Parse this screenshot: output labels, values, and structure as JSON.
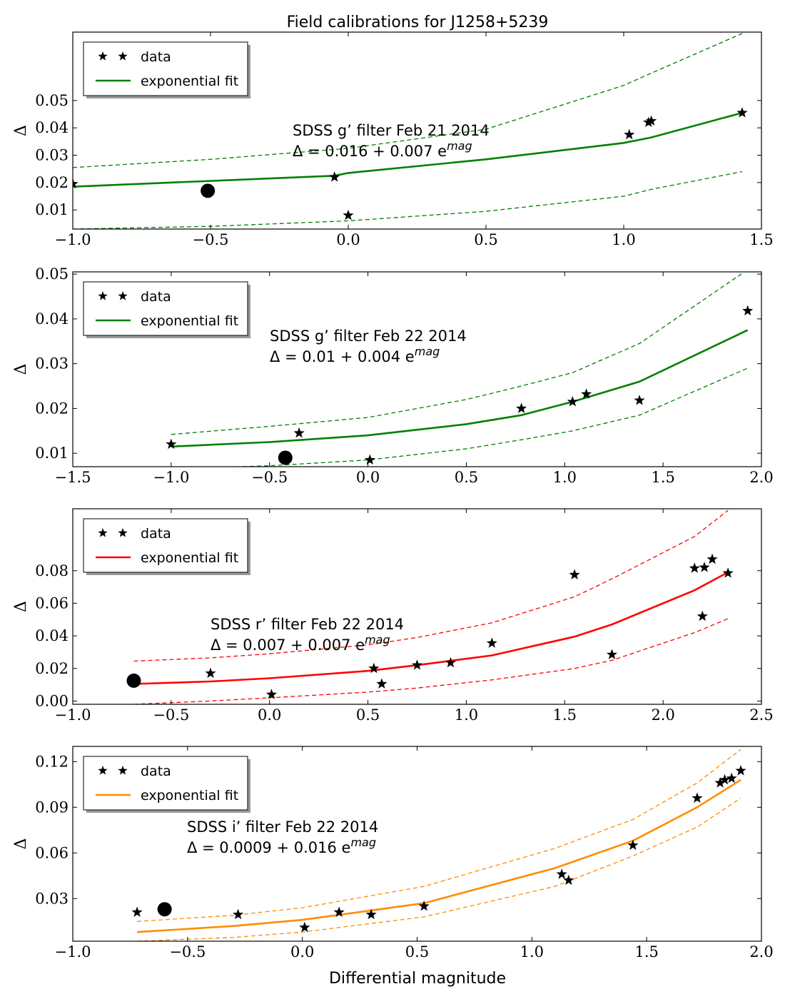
{
  "figure": {
    "title": "Field calibrations for J1258+5239",
    "xlabel": "Differential magnitude"
  },
  "chart_data": [
    {
      "type": "scatter",
      "xlim": [
        -1.0,
        1.5
      ],
      "ylim": [
        0.003,
        0.075
      ],
      "xticks": [
        -1.0,
        -0.5,
        0.0,
        0.5,
        1.0,
        1.5
      ],
      "xtick_labels": [
        "−1.0",
        "−0.5",
        "0.0",
        "0.5",
        "1.0",
        "1.5"
      ],
      "yticks": [
        0.01,
        0.02,
        0.03,
        0.04,
        0.05
      ],
      "ytick_labels": [
        "0.01",
        "0.02",
        "0.03",
        "0.04",
        "0.05"
      ],
      "ylabel": "Δ",
      "color": "#008000",
      "annotation": {
        "line1": "SDSS g’ filter Feb 21 2014",
        "line2_prefix": "Δ = 0.016 + 0.007 e",
        "line2_sup": "mag"
      },
      "legend": {
        "data_label": "data",
        "fit_label": "exponential fit",
        "position": "top-left"
      },
      "data": {
        "x": [
          -1.0,
          -0.05,
          0.0,
          1.02,
          1.09,
          1.1,
          1.43
        ],
        "y": [
          0.0195,
          0.022,
          0.008,
          0.0375,
          0.042,
          0.0425,
          0.0455
        ]
      },
      "target": {
        "x": -0.51,
        "y": 0.017
      },
      "fit": {
        "x": [
          -1.0,
          -0.05,
          0.0,
          0.5,
          1.0,
          1.1,
          1.43
        ],
        "y": [
          0.0185,
          0.0225,
          0.0235,
          0.0285,
          0.0345,
          0.0365,
          0.0455
        ]
      },
      "fit_upper": {
        "x": [
          -1.0,
          -0.5,
          0.0,
          0.5,
          1.0,
          1.1,
          1.43
        ],
        "y": [
          0.0255,
          0.0285,
          0.0325,
          0.0395,
          0.0555,
          0.06,
          0.0745
        ]
      },
      "fit_lower": {
        "x": [
          -1.0,
          -0.5,
          0.0,
          0.5,
          1.0,
          1.1,
          1.43
        ],
        "y": [
          0.003,
          0.004,
          0.006,
          0.0095,
          0.015,
          0.0175,
          0.024
        ]
      }
    },
    {
      "type": "scatter",
      "xlim": [
        -1.5,
        2.0
      ],
      "ylim": [
        0.007,
        0.0505
      ],
      "xticks": [
        -1.5,
        -1.0,
        -0.5,
        0.0,
        0.5,
        1.0,
        1.5,
        2.0
      ],
      "xtick_labels": [
        "−1.5",
        "−1.0",
        "−0.5",
        "0.0",
        "0.5",
        "1.0",
        "1.5",
        "2.0"
      ],
      "yticks": [
        0.01,
        0.02,
        0.03,
        0.04,
        0.05
      ],
      "ytick_labels": [
        "0.01",
        "0.02",
        "0.03",
        "0.04",
        "0.05"
      ],
      "ylabel": "Δ",
      "color": "#008000",
      "annotation": {
        "line1": "SDSS g’ filter Feb 22 2014",
        "line2_prefix": "Δ = 0.01 + 0.004 e",
        "line2_sup": "mag"
      },
      "legend": {
        "data_label": "data",
        "fit_label": "exponential fit",
        "position": "top-left"
      },
      "data": {
        "x": [
          -1.0,
          -0.35,
          0.01,
          0.78,
          1.04,
          1.11,
          1.38,
          1.93
        ],
        "y": [
          0.012,
          0.0145,
          0.0085,
          0.02,
          0.0215,
          0.0232,
          0.0218,
          0.0418
        ]
      },
      "target": {
        "x": -0.42,
        "y": 0.009
      },
      "fit": {
        "x": [
          -1.0,
          -0.5,
          0.0,
          0.5,
          0.78,
          1.04,
          1.38,
          1.93
        ],
        "y": [
          0.0115,
          0.0125,
          0.014,
          0.0165,
          0.0185,
          0.0215,
          0.026,
          0.0375
        ]
      },
      "fit_upper": {
        "x": [
          -1.0,
          -0.5,
          0.0,
          0.5,
          0.78,
          1.04,
          1.38,
          1.93
        ],
        "y": [
          0.0142,
          0.016,
          0.018,
          0.022,
          0.025,
          0.028,
          0.0345,
          0.051
        ]
      },
      "fit_lower": {
        "x": [
          -1.0,
          -0.5,
          0.0,
          0.5,
          0.78,
          1.04,
          1.38,
          1.93
        ],
        "y": [
          0.0065,
          0.0072,
          0.0085,
          0.011,
          0.013,
          0.015,
          0.0185,
          0.029
        ]
      }
    },
    {
      "type": "scatter",
      "xlim": [
        -1.0,
        2.5
      ],
      "ylim": [
        -0.002,
        0.118
      ],
      "xticks": [
        -1.0,
        -0.5,
        0.0,
        0.5,
        1.0,
        1.5,
        2.0,
        2.5
      ],
      "xtick_labels": [
        "−1.0",
        "−0.5",
        "0.0",
        "0.5",
        "1.0",
        "1.5",
        "2.0",
        "2.5"
      ],
      "yticks": [
        0.0,
        0.02,
        0.04,
        0.06,
        0.08
      ],
      "ytick_labels": [
        "0.00",
        "0.02",
        "0.04",
        "0.06",
        "0.08"
      ],
      "ylabel": "Δ",
      "color": "#ff0000",
      "annotation": {
        "line1": "SDSS r’ filter Feb 22 2014",
        "line2_prefix": "Δ = 0.007 + 0.007 e",
        "line2_sup": "mag"
      },
      "legend": {
        "data_label": "data",
        "fit_label": "exponential fit",
        "position": "top-left"
      },
      "data": {
        "x": [
          -0.3,
          0.01,
          0.53,
          0.57,
          0.75,
          0.92,
          1.13,
          1.55,
          1.74,
          2.16,
          2.2,
          2.21,
          2.25,
          2.33
        ],
        "y": [
          0.017,
          0.004,
          0.02,
          0.0105,
          0.022,
          0.0235,
          0.0355,
          0.0775,
          0.0285,
          0.0815,
          0.052,
          0.082,
          0.087,
          0.0785
        ]
      },
      "target": {
        "x": -0.69,
        "y": 0.0125
      },
      "fit": {
        "x": [
          -0.69,
          -0.3,
          0.0,
          0.5,
          0.75,
          1.13,
          1.55,
          1.74,
          2.16,
          2.33
        ],
        "y": [
          0.0105,
          0.012,
          0.014,
          0.0185,
          0.022,
          0.028,
          0.0395,
          0.047,
          0.068,
          0.079
        ]
      },
      "fit_upper": {
        "x": [
          -0.69,
          -0.3,
          0.0,
          0.5,
          0.75,
          1.13,
          1.55,
          1.74,
          2.16,
          2.33
        ],
        "y": [
          0.0245,
          0.0265,
          0.029,
          0.0345,
          0.039,
          0.048,
          0.064,
          0.075,
          0.101,
          0.117
        ]
      },
      "fit_lower": {
        "x": [
          -0.69,
          -0.3,
          0.0,
          0.5,
          0.75,
          1.13,
          1.55,
          1.74,
          2.16,
          2.33
        ],
        "y": [
          -0.002,
          0.0,
          0.002,
          0.0055,
          0.008,
          0.013,
          0.02,
          0.025,
          0.042,
          0.0505
        ]
      }
    },
    {
      "type": "scatter",
      "xlim": [
        -1.0,
        2.0
      ],
      "ylim": [
        0.002,
        0.13
      ],
      "xticks": [
        -1.0,
        -0.5,
        0.0,
        0.5,
        1.0,
        1.5,
        2.0
      ],
      "xtick_labels": [
        "−1.0",
        "−0.5",
        "0.0",
        "0.5",
        "1.0",
        "1.5",
        "2.0"
      ],
      "yticks": [
        0.03,
        0.06,
        0.09,
        0.12
      ],
      "ytick_labels": [
        "0.03",
        "0.06",
        "0.09",
        "0.12"
      ],
      "ylabel": "Δ",
      "color": "#ff8c00",
      "annotation": {
        "line1": "SDSS i’ filter Feb 22 2014",
        "line2_prefix": "Δ = 0.0009 + 0.016 e",
        "line2_sup": "mag"
      },
      "legend": {
        "data_label": "data",
        "fit_label": "exponential fit",
        "position": "top-left"
      },
      "data": {
        "x": [
          -0.72,
          -0.28,
          0.01,
          0.16,
          0.3,
          0.53,
          1.13,
          1.16,
          1.44,
          1.72,
          1.82,
          1.84,
          1.87,
          1.91
        ],
        "y": [
          0.021,
          0.0195,
          0.011,
          0.021,
          0.0195,
          0.025,
          0.046,
          0.042,
          0.065,
          0.096,
          0.106,
          0.108,
          0.109,
          0.114
        ]
      },
      "target": {
        "x": -0.6,
        "y": 0.023
      },
      "fit": {
        "x": [
          -0.72,
          -0.3,
          0.0,
          0.53,
          1.1,
          1.44,
          1.72,
          1.91
        ],
        "y": [
          0.008,
          0.012,
          0.016,
          0.027,
          0.05,
          0.068,
          0.09,
          0.108
        ]
      },
      "fit_upper": {
        "x": [
          -0.72,
          -0.3,
          0.0,
          0.53,
          1.1,
          1.44,
          1.72,
          1.91
        ],
        "y": [
          0.015,
          0.019,
          0.024,
          0.038,
          0.063,
          0.082,
          0.106,
          0.128
        ]
      },
      "fit_lower": {
        "x": [
          -0.72,
          -0.3,
          0.0,
          0.53,
          1.1,
          1.44,
          1.72,
          1.91
        ],
        "y": [
          0.002,
          0.0045,
          0.008,
          0.018,
          0.038,
          0.058,
          0.077,
          0.096
        ]
      }
    }
  ]
}
